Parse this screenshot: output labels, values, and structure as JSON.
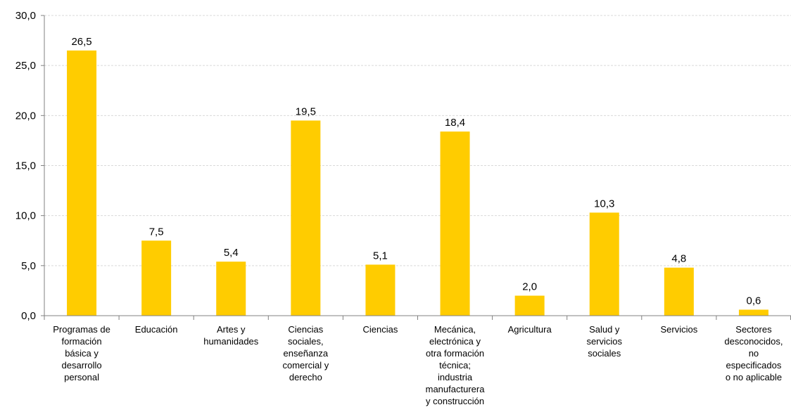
{
  "chart_data": {
    "type": "bar",
    "categories": [
      [
        "Programas de",
        "formación",
        "básica y",
        "desarrollo",
        "personal"
      ],
      [
        "Educación"
      ],
      [
        "Artes y",
        "humanidades"
      ],
      [
        "Ciencias",
        "sociales,",
        "enseñanza",
        "comercial y",
        "derecho"
      ],
      [
        "Ciencias"
      ],
      [
        "Mecánica,",
        "electrónica y",
        "otra formación",
        "técnica;",
        "industria",
        "manufacturera",
        "y construcción"
      ],
      [
        "Agricultura"
      ],
      [
        "Salud y",
        "servicios",
        "sociales"
      ],
      [
        "Servicios"
      ],
      [
        "Sectores",
        "desconocidos,",
        "no",
        "especificados",
        "o no aplicable"
      ]
    ],
    "values": [
      26.5,
      7.5,
      5.4,
      19.5,
      5.1,
      18.4,
      2.0,
      10.3,
      4.8,
      0.6
    ],
    "value_labels": [
      "26,5",
      "7,5",
      "5,4",
      "19,5",
      "5,1",
      "18,4",
      "2,0",
      "10,3",
      "4,8",
      "0,6"
    ],
    "y_ticks": [
      "0,0",
      "5,0",
      "10,0",
      "15,0",
      "20,0",
      "25,0",
      "30,0"
    ],
    "ylim": [
      0,
      30
    ],
    "title": "",
    "xlabel": "",
    "ylabel": "",
    "grid": true,
    "legend": "none",
    "bar_color": "#FFCC00",
    "grid_color": "#d9d9d9"
  }
}
